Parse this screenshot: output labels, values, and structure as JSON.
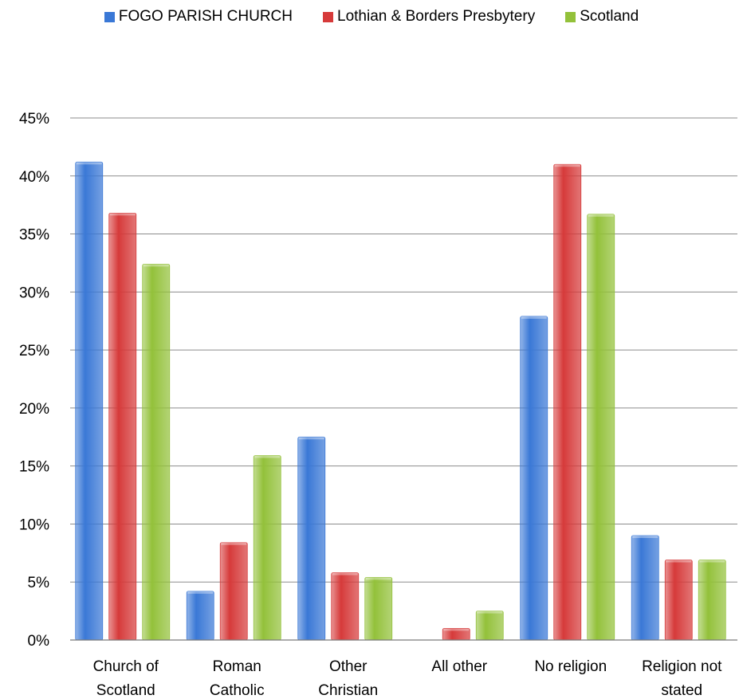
{
  "chart_data": {
    "type": "bar",
    "title": "",
    "xlabel": "",
    "ylabel": "",
    "categories": [
      [
        "Church of",
        "Scotland"
      ],
      [
        "Roman",
        "Catholic"
      ],
      [
        "Other",
        "Christian"
      ],
      [
        "All other"
      ],
      [
        "No religion"
      ],
      [
        "Religion not",
        "stated"
      ]
    ],
    "series": [
      {
        "name": "FOGO PARISH CHURCH",
        "color": "#3a78d6",
        "values": [
          41.2,
          4.2,
          17.5,
          0,
          27.9,
          9.0
        ]
      },
      {
        "name": "Lothian & Borders Presbytery",
        "color": "#d63a3a",
        "values": [
          36.8,
          8.4,
          5.8,
          1.0,
          41.0,
          6.9
        ]
      },
      {
        "name": "Scotland",
        "color": "#93c13a",
        "values": [
          32.4,
          15.9,
          5.4,
          2.5,
          36.7,
          6.9
        ]
      }
    ],
    "ylim": [
      0,
      45
    ],
    "yticks": [
      0,
      5,
      10,
      15,
      20,
      25,
      30,
      35,
      40,
      45
    ],
    "ytick_labels": [
      "0%",
      "5%",
      "10%",
      "15%",
      "20%",
      "25%",
      "30%",
      "35%",
      "40%",
      "45%"
    ],
    "grid": true,
    "legend_position": "top"
  }
}
